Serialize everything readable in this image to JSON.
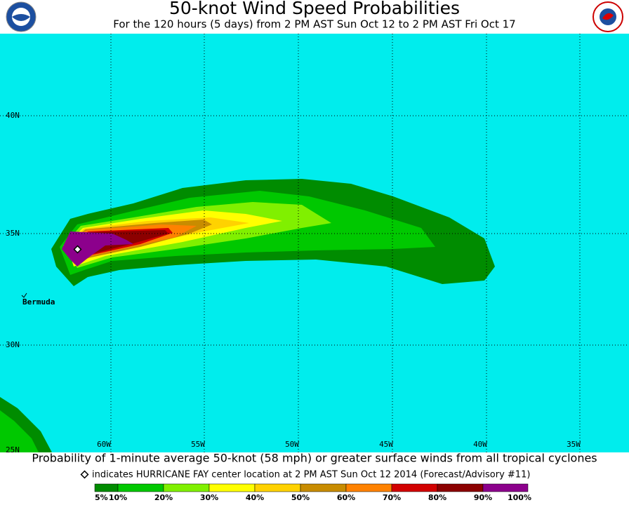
{
  "header": {
    "title": "50-knot Wind Speed Probabilities",
    "subtitle": "For the 120 hours (5 days) from 2 PM AST Sun Oct 12 to 2 PM AST Fri Oct 17"
  },
  "map": {
    "latitude_labels": [
      "40N",
      "35N",
      "30N",
      "25N"
    ],
    "longitude_labels": [
      "60W",
      "55W",
      "50W",
      "45W",
      "40W",
      "35W"
    ],
    "place_label": "Bermuda"
  },
  "footer": {
    "caption": "Probability of 1-minute average 50-knot (58 mph) or greater surface winds from all tropical cyclones",
    "note": "indicates HURRICANE FAY center location at 2 PM AST Sun Oct 12 2014 (Forecast/Advisory #11)"
  },
  "legend": {
    "labels": [
      "5%",
      "10%",
      "20%",
      "30%",
      "40%",
      "50%",
      "60%",
      "70%",
      "80%",
      "90%",
      "100%"
    ],
    "colors": [
      "#008c00",
      "#00c800",
      "#80f000",
      "#ffff00",
      "#ffd200",
      "#c88c00",
      "#ff8200",
      "#d20000",
      "#8c0000",
      "#8c008c"
    ]
  }
}
